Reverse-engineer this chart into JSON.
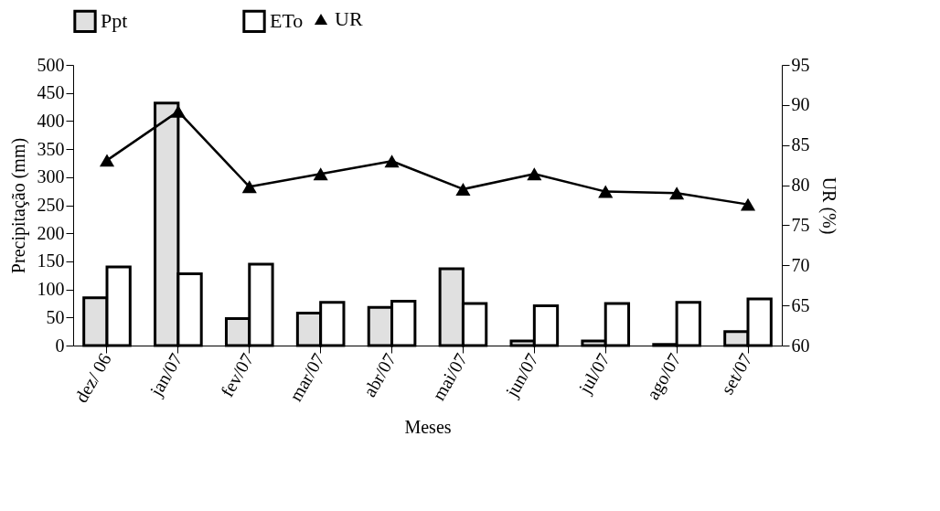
{
  "chart_data": {
    "type": "bar",
    "xlabel": "Meses",
    "ylabel": "Precipitação (mm)",
    "y2label": "UR (%)",
    "categories": [
      "dez/ 06",
      "jan/07",
      "fev/07",
      "mar/07",
      "abr/07",
      "mai/07",
      "jun/07",
      "jul/07",
      "ago/07",
      "set/07"
    ],
    "series": [
      {
        "name": "Ppt",
        "color": "#e0e0e0",
        "values": [
          85,
          432,
          48,
          58,
          68,
          137,
          8,
          8,
          2,
          25
        ]
      },
      {
        "name": "ETo",
        "color": "#ffffff",
        "values": [
          140,
          128,
          145,
          77,
          79,
          75,
          71,
          75,
          77,
          83
        ]
      },
      {
        "name": "UR",
        "type": "line",
        "axis": "y2",
        "color": "#000000",
        "marker": "triangle",
        "line_style": "solid",
        "values": [
          83.1,
          89.2,
          79.8,
          81.4,
          83,
          79.5,
          81.4,
          79.2,
          79,
          77.6
        ]
      }
    ],
    "ylim": [
      0,
      500
    ],
    "yticks": [
      0,
      50,
      100,
      150,
      200,
      250,
      300,
      350,
      400,
      450,
      500
    ],
    "y2lim": [
      60,
      95
    ],
    "y2ticks": [
      60,
      65,
      70,
      75,
      80,
      85,
      90,
      95
    ],
    "grid": false,
    "legend": "top"
  }
}
